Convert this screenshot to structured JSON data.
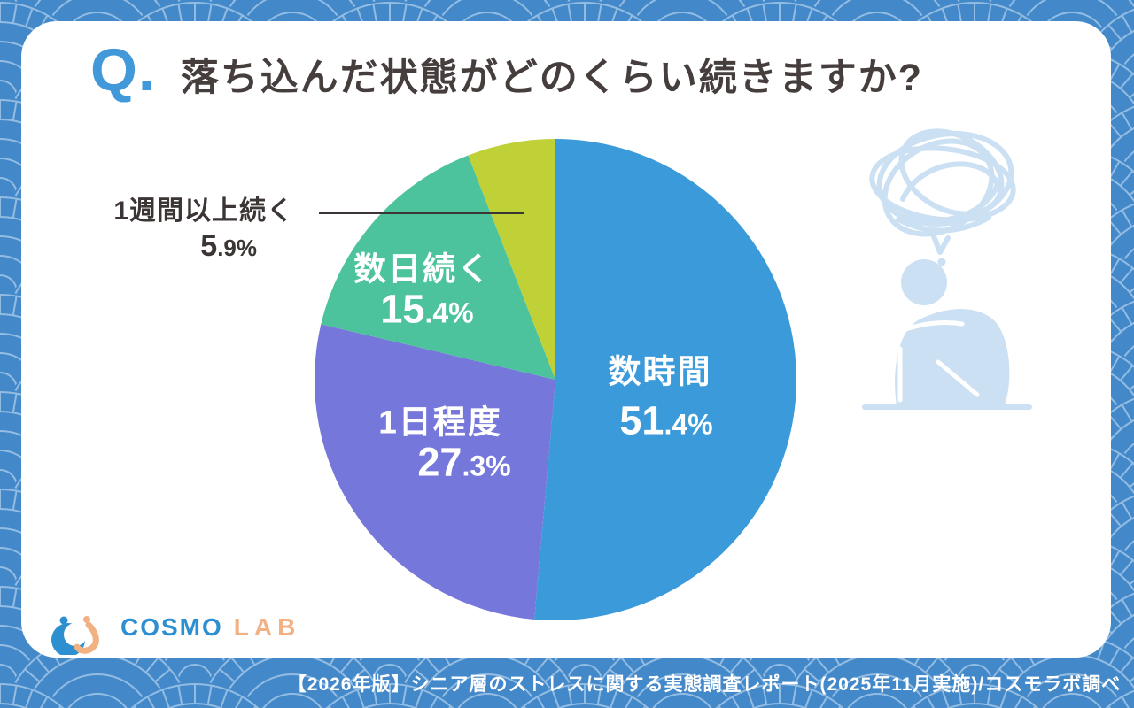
{
  "header": {
    "q_mark": "Q.",
    "title": "落ち込んだ状態がどのくらい続きますか?"
  },
  "chart_data": {
    "type": "pie",
    "title": "落ち込んだ状態がどのくらい続きますか?",
    "unit": "%",
    "direction": "clockwise",
    "start_angle_deg": 0,
    "categories": [
      "数時間",
      "1日程度",
      "数日続く",
      "1週間以上続く"
    ],
    "values": [
      51.4,
      27.3,
      15.4,
      5.9
    ],
    "colors": [
      "#3B9ADA",
      "#7577DA",
      "#4CC39D",
      "#BFD136"
    ],
    "slices": [
      {
        "label": "数時間",
        "value": 51.4,
        "pct_main": "51",
        "pct_sub": ".4%",
        "color": "#3B9ADA",
        "label_placement": "inside"
      },
      {
        "label": "1日程度",
        "value": 27.3,
        "pct_main": "27",
        "pct_sub": ".3%",
        "color": "#7577DA",
        "label_placement": "inside"
      },
      {
        "label": "数日続く",
        "value": 15.4,
        "pct_main": "15",
        "pct_sub": ".4%",
        "color": "#4CC39D",
        "label_placement": "inside"
      },
      {
        "label": "1週間以上続く",
        "value": 5.9,
        "pct_main": "5",
        "pct_sub": ".9%",
        "color": "#BFD136",
        "label_placement": "outside-left-with-leader-line"
      }
    ]
  },
  "illustration": {
    "description": "person sitting hunched with tangled scribble thought bubble",
    "color": "#CBE0F2"
  },
  "logo": {
    "cosmo": "COSMO",
    "lab": "LAB",
    "blue": "#2E8FD0",
    "orange": "#F2B183"
  },
  "footer": {
    "text": "【2026年版】シニア層のストレスに関する実態調査レポート(2025年11月実施)/コスモラボ調べ"
  },
  "style": {
    "background_blue": "#4389CA",
    "pattern_line": "#93BCE3",
    "card_color": "#FFFFFF",
    "title_color": "#453E3D",
    "q_color": "#4299D9",
    "outside_label_color": "#3B3534"
  }
}
